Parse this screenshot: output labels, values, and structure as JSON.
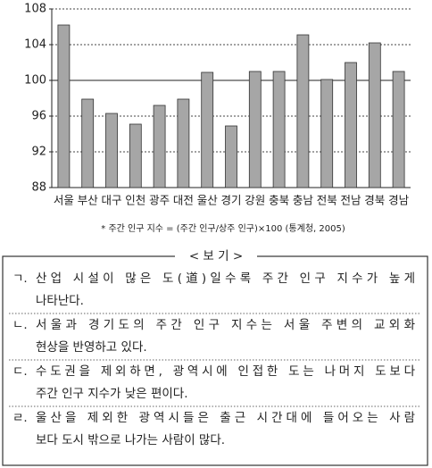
{
  "chart_data": {
    "type": "bar",
    "categories": [
      "서울",
      "부산",
      "대구",
      "인천",
      "광주",
      "대전",
      "울산",
      "경기",
      "강원",
      "충북",
      "충남",
      "전북",
      "전남",
      "경북",
      "경남"
    ],
    "values": [
      106.2,
      97.9,
      96.3,
      95.1,
      97.2,
      97.9,
      100.9,
      94.9,
      101.0,
      101.0,
      105.1,
      100.1,
      102.0,
      104.2,
      101.0
    ],
    "color": "#a6a6a6",
    "ylim": [
      88,
      108
    ],
    "yticks": [
      88,
      92,
      96,
      100,
      104,
      108
    ],
    "grid": true,
    "baseline": 100,
    "footnote": "* 주간 인구 지수 = (주간 인구/상주 인구)×100  (통계청, 2005)"
  },
  "box": {
    "title": "< 보 기 >",
    "items": [
      {
        "label": "ㄱ.",
        "lines": [
          "산업 시설이 많은 도(道)일수록 주간 인구 지수가 높게",
          "나타난다."
        ]
      },
      {
        "label": "ㄴ.",
        "lines": [
          "서울과 경기도의 주간 인구 지수는 서울 주변의 교외화",
          "현상을 반영하고 있다."
        ]
      },
      {
        "label": "ㄷ.",
        "lines": [
          "수도권을 제외하면, 광역시에 인접한 도는 나머지 도보다",
          "주간 인구 지수가 낮은 편이다."
        ]
      },
      {
        "label": "ㄹ.",
        "lines": [
          "울산을 제외한 광역시들은 출근 시간대에 들어오는 사람",
          "보다 도시 밖으로 나가는 사람이 많다."
        ]
      }
    ]
  }
}
